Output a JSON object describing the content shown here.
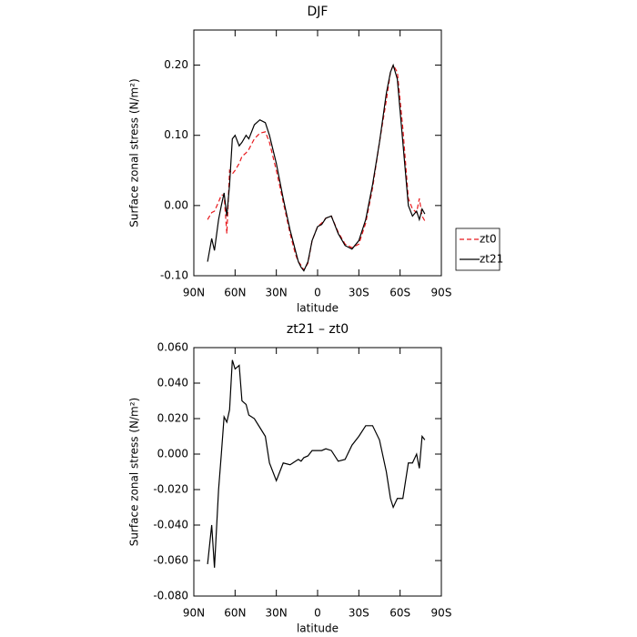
{
  "chart_data": [
    {
      "type": "line",
      "title": "DJF",
      "xlabel": "latitude",
      "ylabel": "Surface zonal stress (N/m²)",
      "x": [
        80,
        77,
        75,
        72,
        70,
        68,
        66,
        64,
        62,
        60,
        57,
        55,
        52,
        50,
        46,
        42,
        38,
        35,
        30,
        25,
        20,
        16,
        14,
        12,
        10,
        7,
        4,
        0,
        -3,
        -6,
        -10,
        -15,
        -20,
        -25,
        -30,
        -35,
        -40,
        -45,
        -50,
        -53,
        -55,
        -58,
        -62,
        -66,
        -69,
        -72,
        -74,
        -76,
        -78
      ],
      "series": [
        {
          "name": "zt0",
          "color": "#e8191d",
          "linestyle": "dashed",
          "values": [
            -0.02,
            -0.01,
            -0.008,
            0.005,
            0.015,
            0.015,
            -0.04,
            0.05,
            0.045,
            0.05,
            0.06,
            0.07,
            0.075,
            0.08,
            0.095,
            0.103,
            0.105,
            0.09,
            0.05,
            0.005,
            -0.04,
            -0.07,
            -0.08,
            -0.085,
            -0.092,
            -0.082,
            -0.05,
            -0.03,
            -0.025,
            -0.018,
            -0.015,
            -0.038,
            -0.055,
            -0.06,
            -0.055,
            -0.025,
            0.025,
            0.09,
            0.15,
            0.19,
            0.2,
            0.19,
            0.11,
            0.01,
            -0.005,
            -0.01,
            0.01,
            -0.015,
            -0.022
          ]
        },
        {
          "name": "zt21",
          "color": "#000000",
          "linestyle": "solid",
          "values": [
            -0.08,
            -0.047,
            -0.064,
            -0.02,
            0.0,
            0.018,
            -0.015,
            0.03,
            0.095,
            0.1,
            0.085,
            0.09,
            0.1,
            0.095,
            0.115,
            0.122,
            0.118,
            0.1,
            0.06,
            0.01,
            -0.035,
            -0.065,
            -0.08,
            -0.088,
            -0.093,
            -0.08,
            -0.05,
            -0.03,
            -0.027,
            -0.018,
            -0.015,
            -0.04,
            -0.057,
            -0.062,
            -0.05,
            -0.02,
            0.03,
            0.09,
            0.16,
            0.19,
            0.2,
            0.18,
            0.09,
            0.0,
            -0.015,
            -0.008,
            -0.02,
            -0.005,
            -0.012
          ]
        }
      ],
      "xlim": [
        90,
        -90
      ],
      "xticks": [
        {
          "value": 90,
          "label": "90N"
        },
        {
          "value": 60,
          "label": "60N"
        },
        {
          "value": 30,
          "label": "30N"
        },
        0,
        {
          "value": -30,
          "label": "30S"
        },
        {
          "value": -60,
          "label": "60S"
        },
        {
          "value": -90,
          "label": "90S"
        }
      ],
      "ylim": [
        -0.1,
        0.25
      ],
      "yticks": [
        {
          "value": -0.1,
          "label": "-0.10"
        },
        {
          "value": 0,
          "label": "0.00"
        },
        {
          "value": 0.1,
          "label": "0.10"
        },
        {
          "value": 0.2,
          "label": "0.20"
        }
      ],
      "legend": "right"
    },
    {
      "type": "line",
      "title": "zt21 – zt0",
      "xlabel": "latitude",
      "ylabel": "Surface zonal stress (N/m²)",
      "x": [
        80,
        77,
        75,
        72,
        70,
        68,
        66,
        64,
        62,
        60,
        57,
        55,
        52,
        50,
        46,
        42,
        38,
        35,
        30,
        25,
        20,
        16,
        14,
        12,
        10,
        7,
        4,
        0,
        -3,
        -6,
        -10,
        -15,
        -20,
        -25,
        -30,
        -35,
        -40,
        -45,
        -50,
        -53,
        -55,
        -58,
        -62,
        -66,
        -69,
        -72,
        -74,
        -76,
        -78
      ],
      "color": "#000000",
      "values": [
        -0.062,
        -0.04,
        -0.064,
        -0.02,
        0.0,
        0.021,
        0.018,
        0.025,
        0.053,
        0.048,
        0.05,
        0.03,
        0.028,
        0.022,
        0.02,
        0.015,
        0.01,
        -0.005,
        -0.015,
        -0.005,
        -0.006,
        -0.004,
        -0.003,
        -0.004,
        -0.002,
        -0.001,
        0.002,
        0.002,
        0.002,
        0.003,
        0.002,
        -0.004,
        -0.003,
        0.005,
        0.01,
        0.016,
        0.016,
        0.008,
        -0.01,
        -0.025,
        -0.03,
        -0.025,
        -0.025,
        -0.005,
        -0.005,
        0.0,
        -0.008,
        0.01,
        0.008
      ],
      "xlim": [
        90,
        -90
      ],
      "xticks": [
        {
          "value": 90,
          "label": "90N"
        },
        {
          "value": 60,
          "label": "60N"
        },
        {
          "value": 30,
          "label": "30N"
        },
        0,
        {
          "value": -30,
          "label": "30S"
        },
        {
          "value": -60,
          "label": "60S"
        },
        {
          "value": -90,
          "label": "90S"
        }
      ],
      "ylim": [
        -0.08,
        0.06
      ],
      "yticks": [
        {
          "value": -0.08,
          "label": "-0.080"
        },
        {
          "value": -0.06,
          "label": "-0.060"
        },
        {
          "value": -0.04,
          "label": "-0.040"
        },
        {
          "value": -0.02,
          "label": "-0.020"
        },
        {
          "value": 0,
          "label": "0.000"
        },
        {
          "value": 0.02,
          "label": "0.020"
        },
        {
          "value": 0.04,
          "label": "0.040"
        },
        {
          "value": 0.06,
          "label": "0.060"
        }
      ]
    }
  ]
}
